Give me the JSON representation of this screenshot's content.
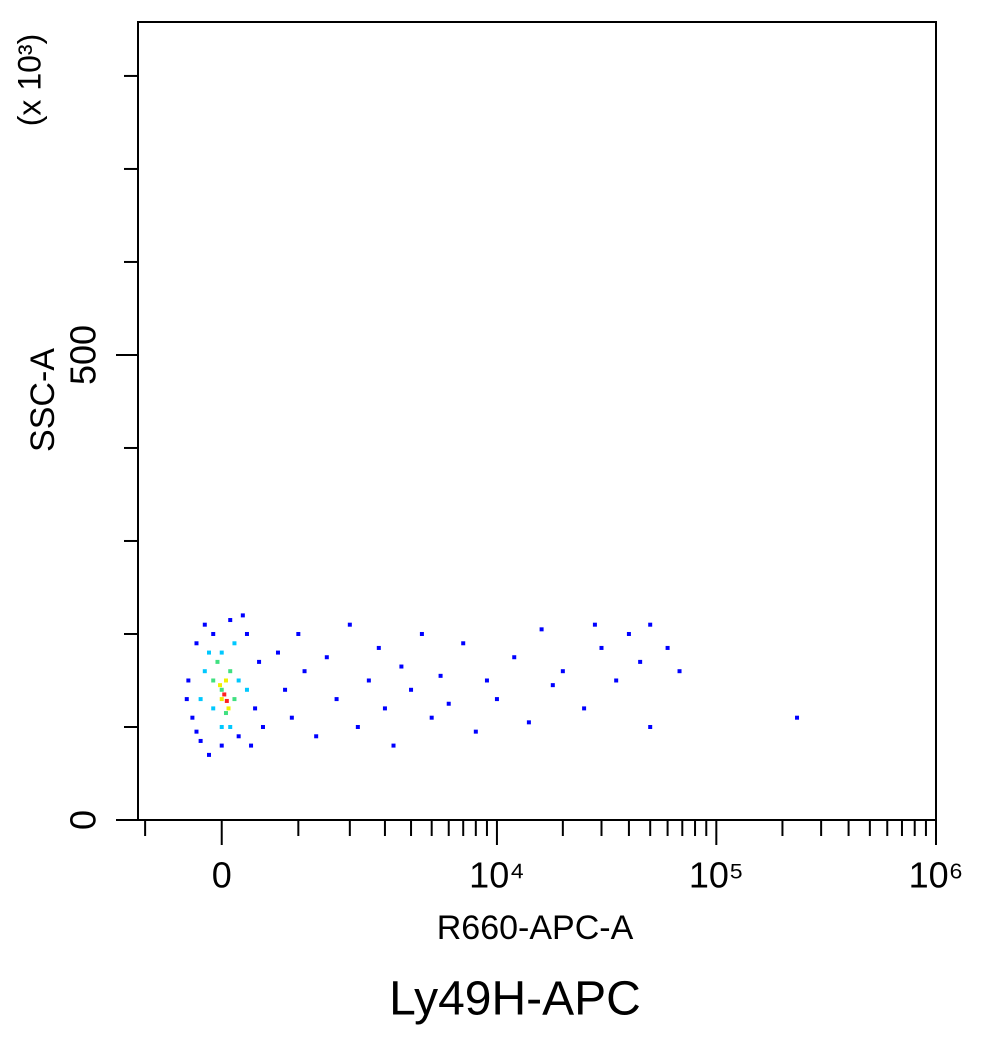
{
  "chart_data": {
    "type": "scatter",
    "title": "Ly49H-APC",
    "x_label": "R660-APC-A",
    "y_label": "SSC-A",
    "y_unit": "(x 10³)",
    "xscale": "biexponential",
    "xlim": [
      -1115,
      1000000
    ],
    "xticks": [
      0,
      {
        "value": 10000,
        "label": "10⁴"
      },
      {
        "value": 100000,
        "label": "10⁵"
      },
      {
        "value": 1000000,
        "label": "10⁶"
      }
    ],
    "xminor": [
      -1000,
      1000,
      2000,
      3000,
      4000,
      5000,
      6000,
      7000,
      8000,
      9000,
      20000,
      30000,
      40000,
      50000,
      60000,
      70000,
      80000,
      90000,
      200000,
      300000,
      400000,
      500000,
      600000,
      700000,
      800000,
      900000
    ],
    "ylim": [
      0,
      858
    ],
    "yticks": [
      0,
      500
    ],
    "yminor": [
      100,
      200,
      300,
      400,
      600,
      700,
      800
    ],
    "series": [
      {
        "color": "#0000ff",
        "x": [
          -400,
          -350,
          -300,
          -250,
          -200,
          -150,
          -100,
          0,
          100,
          200,
          300,
          400,
          450,
          500,
          -420,
          350,
          250,
          -300,
          700,
          800,
          900,
          1000,
          1100,
          1300,
          1500,
          1700,
          2000,
          2200,
          2500,
          2800,
          3000,
          3300,
          3600,
          4000,
          4500,
          5000,
          5500,
          6000,
          7000,
          8000,
          9000,
          10000,
          12000,
          14000,
          16000,
          18000,
          20000,
          25000,
          28000,
          30000,
          35000,
          40000,
          45000,
          50000,
          60000,
          68000,
          50000,
          233000
        ],
        "values": [
          150,
          110,
          190,
          85,
          210,
          70,
          200,
          80,
          215,
          90,
          200,
          120,
          170,
          100,
          130,
          80,
          220,
          95,
          180,
          140,
          110,
          200,
          160,
          90,
          175,
          130,
          210,
          100,
          150,
          185,
          120,
          80,
          165,
          140,
          200,
          110,
          155,
          125,
          190,
          95,
          150,
          130,
          175,
          105,
          205,
          145,
          160,
          120,
          210,
          185,
          150,
          200,
          170,
          210,
          185,
          160,
          100,
          110
        ]
      },
      {
        "color": "#00c8ff",
        "x": [
          -200,
          -100,
          0,
          100,
          200,
          -250,
          300,
          0,
          150,
          -150
        ],
        "values": [
          160,
          120,
          180,
          100,
          150,
          130,
          140,
          100,
          190,
          180
        ]
      },
      {
        "color": "#40e080",
        "x": [
          -100,
          0,
          100,
          50,
          -50,
          150
        ],
        "values": [
          150,
          140,
          160,
          115,
          170,
          130
        ]
      },
      {
        "color": "#f0f000",
        "x": [
          0,
          50,
          80,
          -20
        ],
        "values": [
          130,
          150,
          120,
          145
        ]
      },
      {
        "color": "#ff2020",
        "x": [
          30,
          60
        ],
        "values": [
          135,
          128
        ]
      }
    ]
  }
}
